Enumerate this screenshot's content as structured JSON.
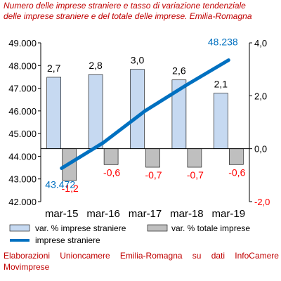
{
  "title": {
    "line1": "Numero delle imprese straniere e tasso di variazione tendenziale",
    "line2": "delle imprese straniere e del totale delle imprese. Emilia-Romagna"
  },
  "footer": {
    "words": [
      "Elaborazioni",
      "Unioncamere",
      "Emilia-Romagna",
      "su",
      "dati",
      "InfoCamere"
    ],
    "line2": "Movimprese"
  },
  "colors": {
    "title": "#c00000",
    "bar_stranieri": "#c6d9f1",
    "bar_totale": "#bfbfbf",
    "line": "#0070c0",
    "neg_labels": "#ff0000",
    "pos_labels": "#000000"
  },
  "chart_data": {
    "type": "bar+line",
    "categories": [
      "mar-15",
      "mar-16",
      "mar-17",
      "mar-18",
      "mar-19"
    ],
    "series": [
      {
        "name": "var. % imprese straniere",
        "type": "bar",
        "axis": "right",
        "values": [
          2.7,
          2.8,
          3.0,
          2.6,
          2.1
        ],
        "labels": [
          "2,7",
          "2,8",
          "3,0",
          "2,6",
          "2,1"
        ]
      },
      {
        "name": "var. % totale imprese",
        "type": "bar",
        "axis": "right",
        "values": [
          -1.2,
          -0.6,
          -0.7,
          -0.7,
          -0.6
        ],
        "labels": [
          "-1,2",
          "-0,6",
          "-0,7",
          "-0,7",
          "-0,6"
        ]
      },
      {
        "name": "imprese straniere",
        "type": "line",
        "axis": "left",
        "values": [
          43472,
          44600,
          46000,
          47150,
          48238
        ],
        "endpoint_labels": {
          "first": "43.472",
          "last": "48.238"
        }
      }
    ],
    "left_axis": {
      "min": 42000,
      "max": 49000,
      "step": 1000,
      "tick_labels": [
        "42.000",
        "43.000",
        "44.000",
        "45.000",
        "46.000",
        "47.000",
        "48.000",
        "49.000"
      ]
    },
    "right_axis": {
      "min": -2.0,
      "max": 4.0,
      "tick_values": [
        -2,
        0,
        2,
        4
      ],
      "tick_labels": [
        "-2,0",
        "0,0",
        "2,0",
        "4,0"
      ]
    },
    "grid": false,
    "legend_position": "bottom"
  }
}
